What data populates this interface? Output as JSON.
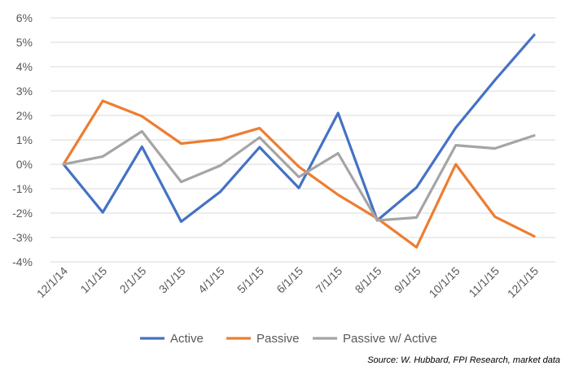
{
  "chart_data": {
    "type": "line",
    "categories": [
      "12/1/14",
      "1/1/15",
      "2/1/15",
      "3/1/15",
      "4/1/15",
      "5/1/15",
      "6/1/15",
      "7/1/15",
      "8/1/15",
      "9/1/15",
      "10/1/15",
      "11/1/15",
      "12/1/15"
    ],
    "series": [
      {
        "name": "Active",
        "color": "#4472C4",
        "values": [
          0.0,
          -1.97,
          0.72,
          -2.35,
          -1.12,
          0.7,
          -0.97,
          2.1,
          -2.3,
          -0.95,
          1.5,
          3.45,
          5.3
        ]
      },
      {
        "name": "Passive",
        "color": "#ED7D31",
        "values": [
          0.0,
          2.6,
          1.97,
          0.85,
          1.02,
          1.48,
          -0.1,
          -1.25,
          -2.22,
          -3.4,
          0.0,
          -2.15,
          -2.95
        ]
      },
      {
        "name": "Passive w/ Active",
        "color": "#A5A5A5",
        "values": [
          0.0,
          0.32,
          1.35,
          -0.72,
          -0.05,
          1.1,
          -0.52,
          0.45,
          -2.3,
          -2.18,
          0.78,
          0.65,
          1.18
        ]
      }
    ],
    "ylim": [
      -4,
      6
    ],
    "yticks": [
      "6%",
      "5%",
      "4%",
      "3%",
      "2%",
      "1%",
      "0%",
      "-1%",
      "-2%",
      "-3%",
      "-4%"
    ],
    "ytick_values": [
      6,
      5,
      4,
      3,
      2,
      1,
      0,
      -1,
      -2,
      -3,
      -4
    ],
    "grid": true,
    "legend": "bottom",
    "source": "Source: W. Hubbard, FPI Research, market data"
  }
}
